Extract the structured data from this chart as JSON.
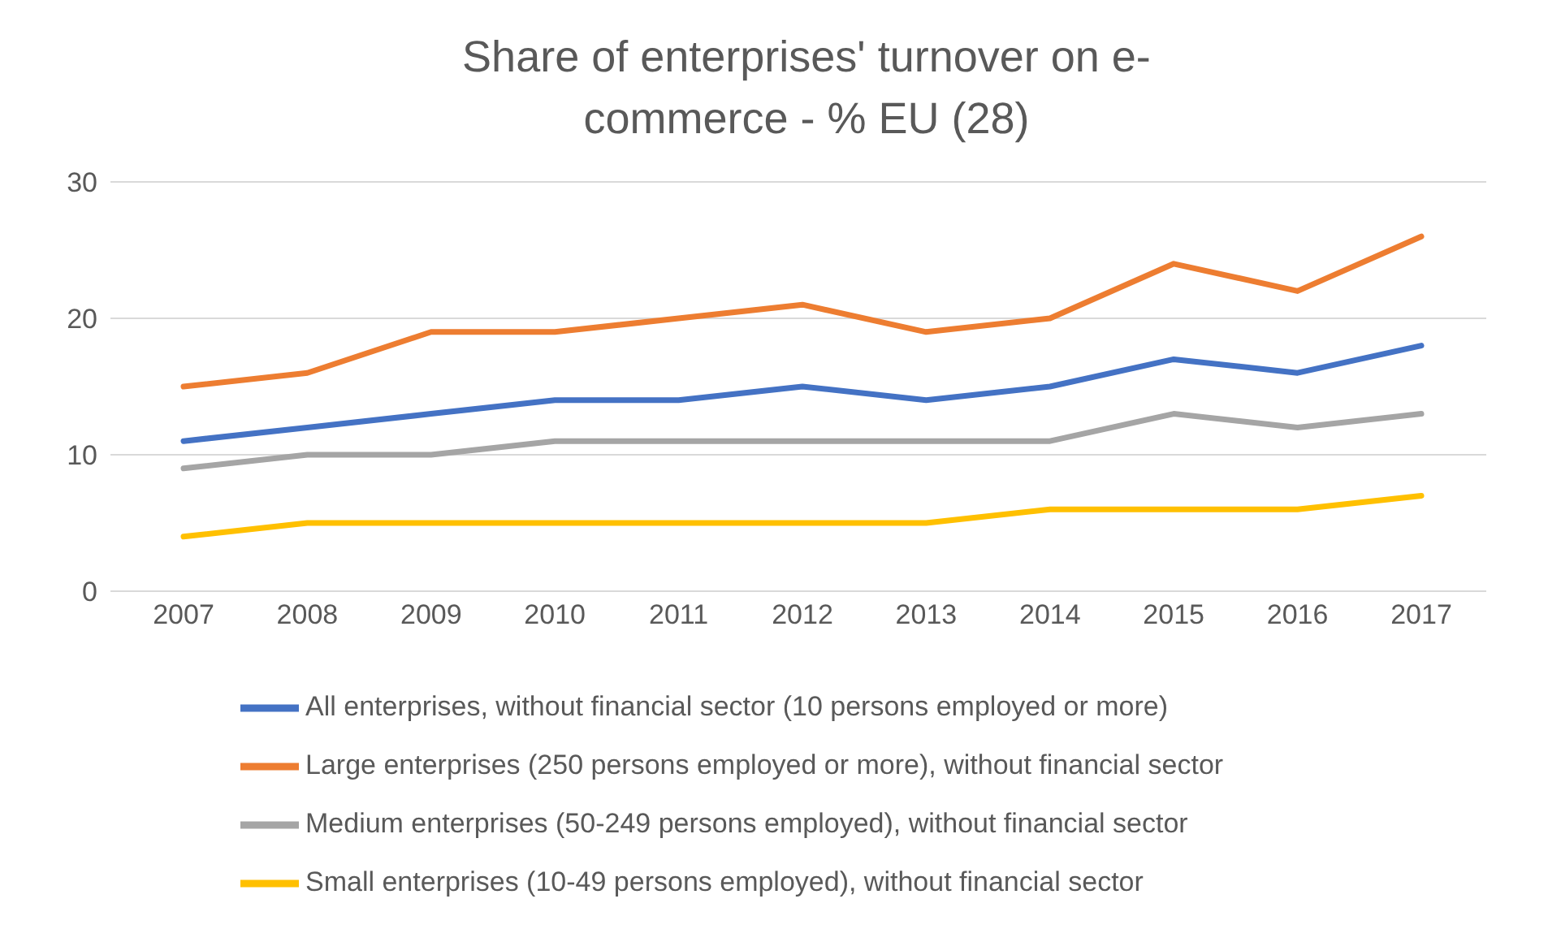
{
  "chart_data": {
    "type": "line",
    "title": "Share of enterprises' turnover on e-commerce - % EU (28)",
    "categories": [
      "2007",
      "2008",
      "2009",
      "2010",
      "2011",
      "2012",
      "2013",
      "2014",
      "2015",
      "2016",
      "2017"
    ],
    "series": [
      {
        "name": "All enterprises, without financial sector (10 persons employed or more)",
        "color": "#4472c4",
        "values": [
          11,
          12,
          13,
          14,
          14,
          15,
          14,
          15,
          17,
          16,
          18
        ]
      },
      {
        "name": "Large enterprises (250 persons employed or more), without financial sector",
        "color": "#ed7d31",
        "values": [
          15,
          16,
          19,
          19,
          20,
          21,
          19,
          20,
          24,
          22,
          26
        ]
      },
      {
        "name": "Medium enterprises (50-249 persons employed), without financial sector",
        "color": "#a5a5a5",
        "values": [
          9,
          10,
          10,
          11,
          11,
          11,
          11,
          11,
          13,
          12,
          13
        ]
      },
      {
        "name": "Small enterprises (10-49 persons employed), without financial sector",
        "color": "#ffc000",
        "values": [
          4,
          5,
          5,
          5,
          5,
          5,
          5,
          6,
          6,
          6,
          7
        ]
      }
    ],
    "ylim": [
      0,
      30
    ],
    "yticks": [
      0,
      10,
      20,
      30
    ],
    "grid": "y",
    "legend": "bottom",
    "marker": "none",
    "line_style": "solid"
  }
}
